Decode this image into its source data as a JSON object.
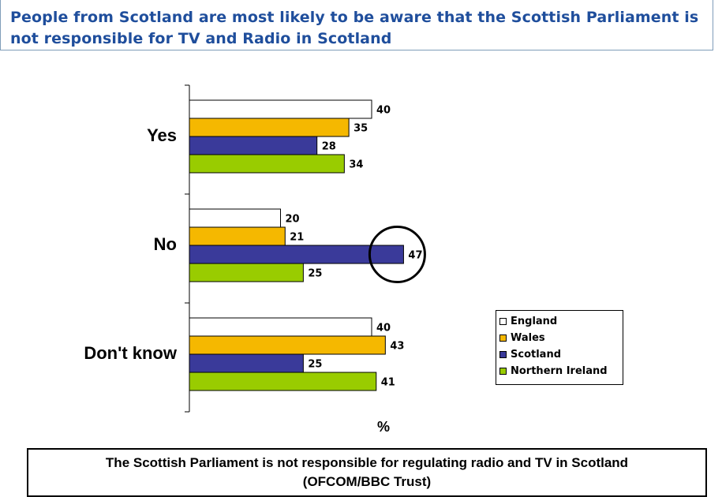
{
  "page": {
    "title": "People from Scotland are most likely to be aware that the Scottish Parliament is not responsible for TV and Radio in Scotland",
    "footnote_line1": "The Scottish Parliament is not responsible for regulating radio and TV in Scotland",
    "footnote_line2": "(OFCOM/BBC Trust)"
  },
  "chart_data": {
    "type": "bar",
    "orientation": "horizontal",
    "categories": [
      "Yes",
      "No",
      "Don't know"
    ],
    "series": [
      {
        "name": "England",
        "color": "#ffffff",
        "values": [
          40,
          20,
          40
        ]
      },
      {
        "name": "Wales",
        "color": "#f5b800",
        "values": [
          35,
          21,
          43
        ]
      },
      {
        "name": "Scotland",
        "color": "#3a3a9a",
        "values": [
          28,
          47,
          25
        ]
      },
      {
        "name": "Northern Ireland",
        "color": "#99cc00",
        "values": [
          34,
          25,
          41
        ]
      }
    ],
    "xlabel": "%",
    "xlim": [
      0,
      50
    ],
    "highlight": {
      "category": "No",
      "series": "Scotland",
      "shape": "circle"
    },
    "grid": false,
    "legend_position": "right"
  }
}
